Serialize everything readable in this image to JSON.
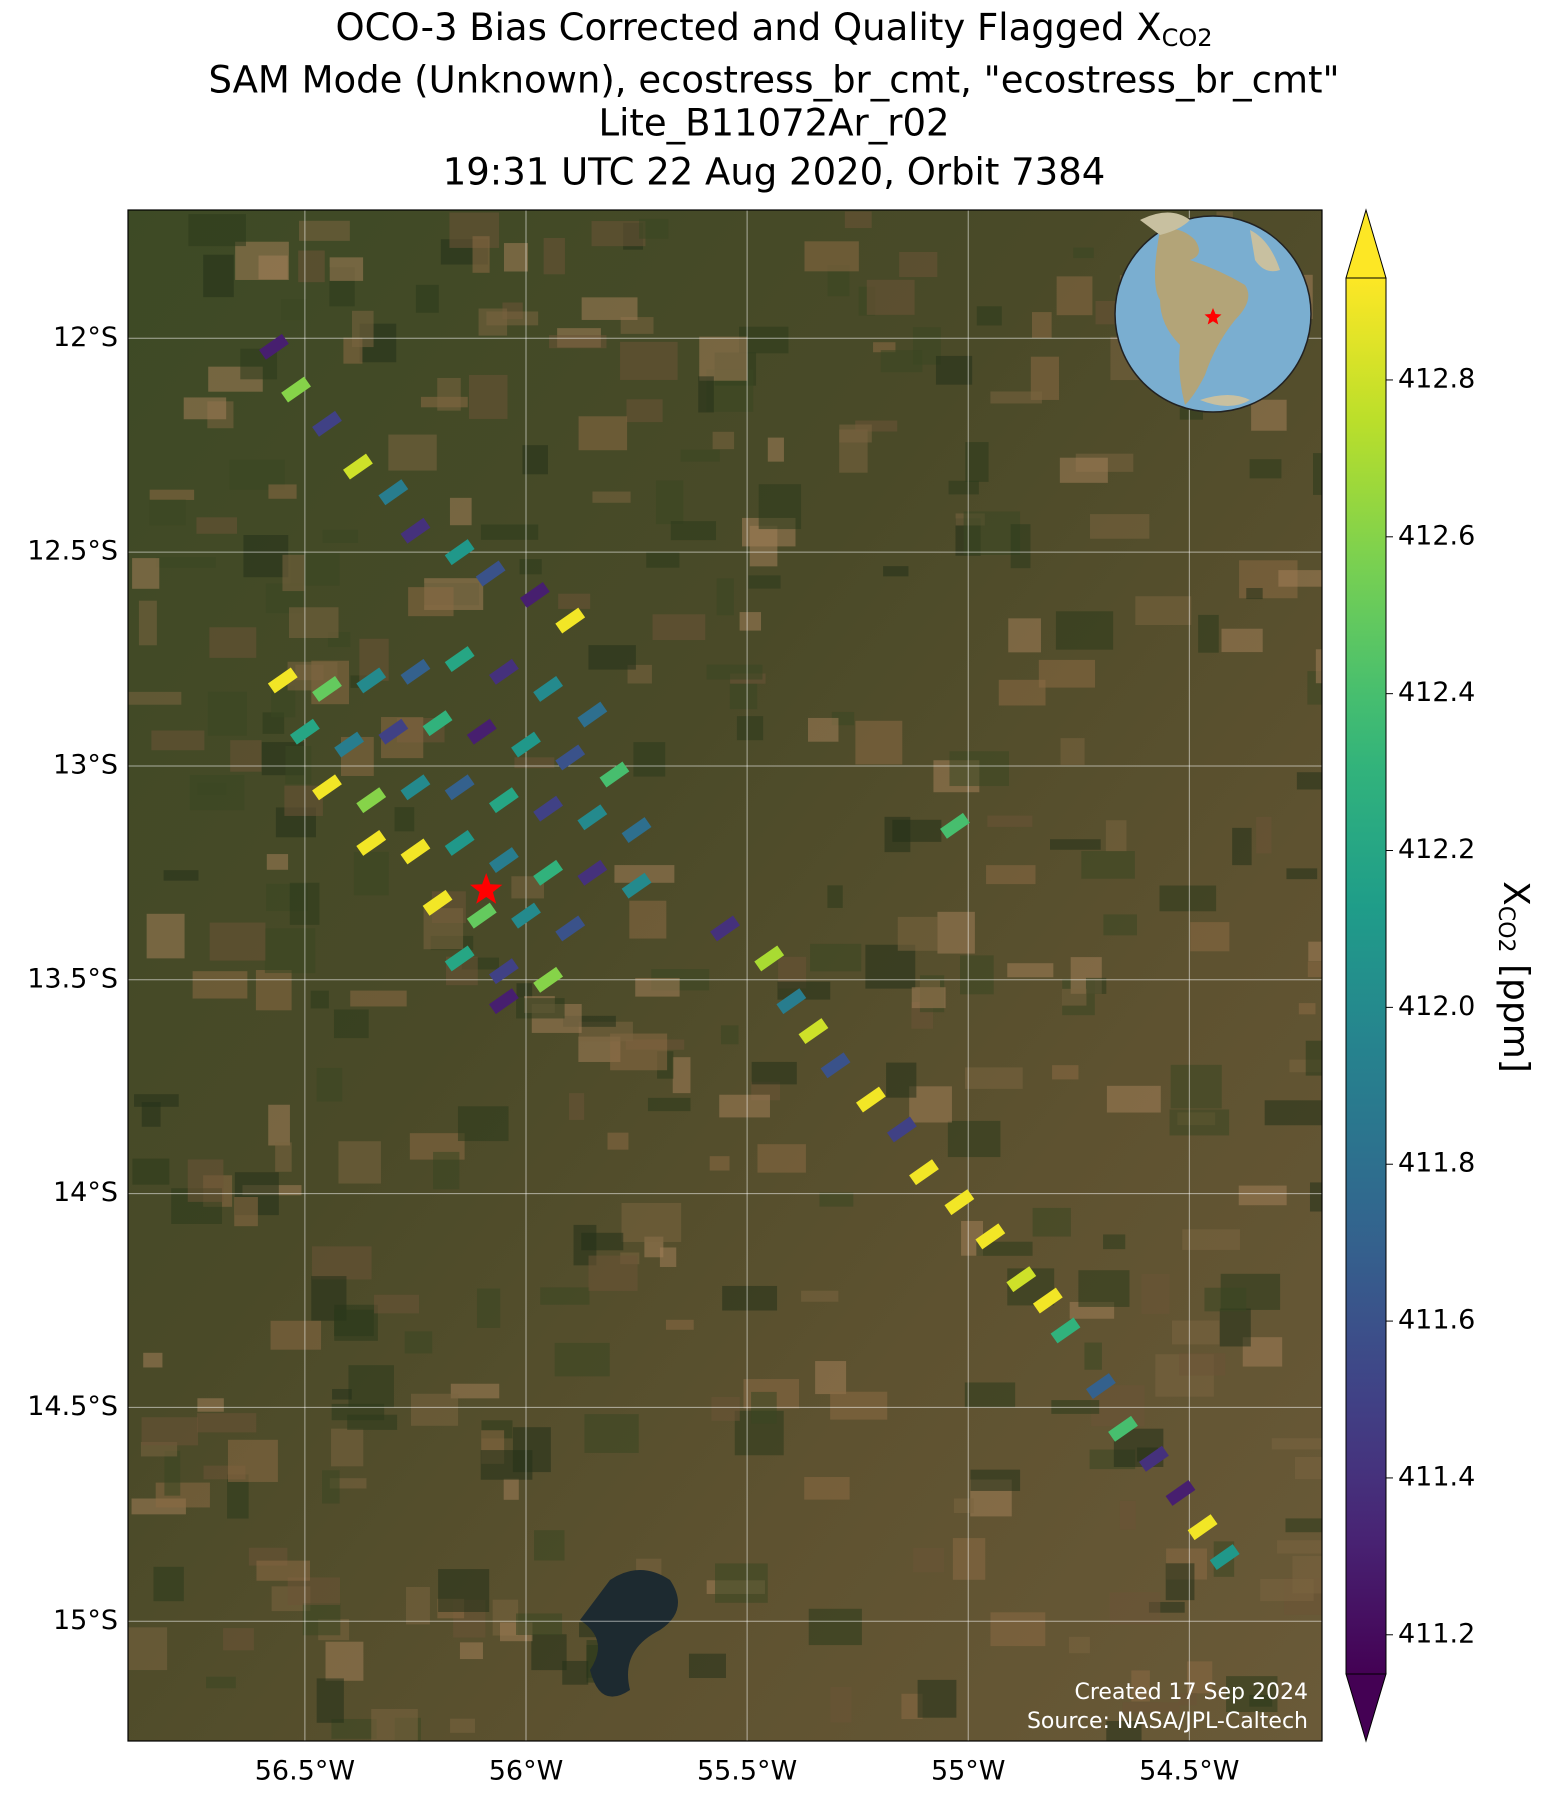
{
  "chart_data": {
    "type": "scatter",
    "title_lines": [
      {
        "text": "OCO-3 Bias Corrected and Quality Flagged X",
        "subscript": "CO2"
      },
      "SAM Mode (Unknown), ecostress_br_cmt, \"ecostress_br_cmt\"",
      "Lite_B11072Ar_r02",
      "19:31 UTC 22 Aug 2020, Orbit 7384"
    ],
    "xlim": [
      -56.9,
      -54.2
    ],
    "ylim": [
      -15.28,
      -11.7
    ],
    "xticks": [
      {
        "value": -56.5,
        "label": "56.5°W"
      },
      {
        "value": -56,
        "label": "56°W"
      },
      {
        "value": -55.5,
        "label": "55.5°W"
      },
      {
        "value": -55,
        "label": "55°W"
      },
      {
        "value": -54.5,
        "label": "54.5°W"
      }
    ],
    "yticks": [
      {
        "value": -12,
        "label": "12°S"
      },
      {
        "value": -12.5,
        "label": "12.5°S"
      },
      {
        "value": -13,
        "label": "13°S"
      },
      {
        "value": -13.5,
        "label": "13.5°S"
      },
      {
        "value": -14,
        "label": "14°S"
      },
      {
        "value": -14.5,
        "label": "14.5°S"
      },
      {
        "value": -15,
        "label": "15°S"
      }
    ],
    "grid": true,
    "colormap": "viridis",
    "clim": [
      411.15,
      412.93
    ],
    "cticks": [
      411.2,
      411.4,
      411.6,
      411.8,
      {
        "value": 412.0,
        "label": "412.0"
      },
      412.2,
      412.4,
      412.6,
      412.8
    ],
    "colorbar_label": {
      "text": "X",
      "subscript": "CO2",
      "suffix": " [ppm]"
    },
    "target": {
      "x": -56.09,
      "y": -13.29,
      "color": "#ff0000"
    },
    "annotations": [
      "Created 17 Sep 2024",
      "Source: NASA/JPL-Caltech"
    ],
    "x": [
      -56.57,
      -56.52,
      -56.45,
      -56.38,
      -56.3,
      -56.25,
      -56.15,
      -56.08,
      -55.98,
      -55.9,
      -56.55,
      -56.45,
      -56.35,
      -56.25,
      -56.15,
      -56.05,
      -55.95,
      -55.85,
      -56.5,
      -56.4,
      -56.3,
      -56.2,
      -56.1,
      -56.0,
      -55.9,
      -55.8,
      -56.45,
      -56.35,
      -56.25,
      -56.15,
      -56.05,
      -55.95,
      -55.85,
      -55.75,
      -56.35,
      -56.25,
      -56.15,
      -56.05,
      -55.95,
      -55.85,
      -55.75,
      -56.2,
      -56.1,
      -56.0,
      -55.9,
      -56.15,
      -56.05,
      -55.95,
      -56.05,
      -55.55,
      -55.45,
      -55.4,
      -55.35,
      -55.3,
      -55.22,
      -55.15,
      -55.1,
      -55.02,
      -54.95,
      -54.88,
      -54.82,
      -54.78,
      -54.7,
      -54.65,
      -54.58,
      -54.52,
      -54.47,
      -54.42,
      -55.03
    ],
    "y": [
      -12.02,
      -12.12,
      -12.2,
      -12.3,
      -12.36,
      -12.45,
      -12.5,
      -12.55,
      -12.6,
      -12.66,
      -12.8,
      -12.82,
      -12.8,
      -12.78,
      -12.75,
      -12.78,
      -12.82,
      -12.88,
      -12.92,
      -12.95,
      -12.92,
      -12.9,
      -12.92,
      -12.95,
      -12.98,
      -13.02,
      -13.05,
      -13.08,
      -13.05,
      -13.05,
      -13.08,
      -13.1,
      -13.12,
      -13.15,
      -13.18,
      -13.2,
      -13.18,
      -13.22,
      -13.25,
      -13.25,
      -13.28,
      -13.32,
      -13.35,
      -13.35,
      -13.38,
      -13.45,
      -13.48,
      -13.5,
      -13.55,
      -13.38,
      -13.45,
      -13.55,
      -13.62,
      -13.7,
      -13.78,
      -13.85,
      -13.95,
      -14.02,
      -14.1,
      -14.2,
      -14.25,
      -14.32,
      -14.45,
      -14.55,
      -14.62,
      -14.7,
      -14.78,
      -14.85,
      -13.14
    ],
    "values": [
      411.3,
      412.6,
      411.5,
      412.8,
      411.9,
      411.4,
      412.1,
      411.6,
      411.3,
      412.9,
      412.9,
      412.5,
      412.0,
      411.7,
      412.2,
      411.4,
      412.0,
      411.8,
      412.2,
      411.9,
      411.5,
      412.3,
      411.3,
      412.1,
      411.6,
      412.4,
      412.9,
      412.6,
      412.0,
      411.7,
      412.2,
      411.5,
      412.0,
      411.8,
      412.9,
      412.9,
      412.1,
      411.9,
      412.3,
      411.4,
      412.0,
      412.9,
      412.5,
      412.0,
      411.6,
      412.2,
      411.5,
      412.6,
      411.3,
      411.4,
      412.7,
      411.9,
      412.8,
      411.6,
      412.9,
      411.5,
      412.9,
      412.9,
      412.9,
      412.8,
      412.9,
      412.3,
      411.7,
      412.4,
      411.4,
      411.3,
      412.9,
      412.1,
      412.4
    ]
  }
}
